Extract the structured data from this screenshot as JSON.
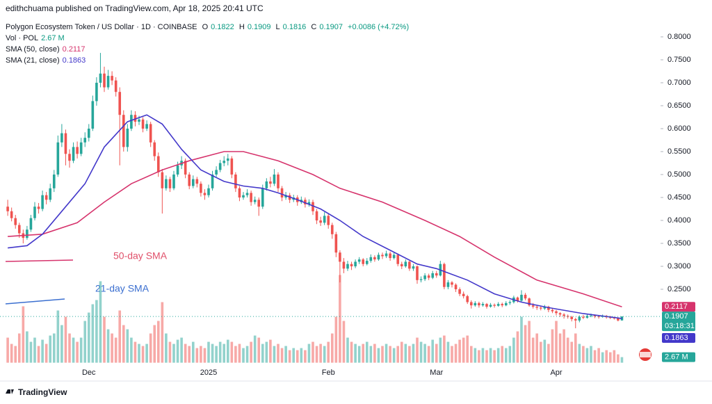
{
  "header": {
    "publisher": "edithchuama published on TradingView.com, Apr 18, 2025 20:41 UTC"
  },
  "footer": {
    "brand": "TradingView"
  },
  "chart_data": {
    "type": "candlestick",
    "title": "Polygon Ecosystem Token / US Dollar · 1D · COINBASE",
    "ohlc_letters": [
      "O",
      "H",
      "L",
      "C"
    ],
    "last_ohlc": [
      0.1822,
      0.1909,
      0.1816,
      0.1907
    ],
    "change": "+0.0086 (+4.72%)",
    "volume_name": "Vol · POL",
    "volume_label": "2.67 M",
    "countdown": "03:18:31",
    "up_color": "#26a69a",
    "down_color": "#ef5350",
    "grid": false,
    "xlim": [
      -2,
      169
    ],
    "ylim": [
      0.09,
      0.85
    ],
    "volume_ylim": [
      0,
      160
    ],
    "yticks": [
      {
        "value": 0.8,
        "label": "0.8000"
      },
      {
        "value": 0.75,
        "label": "0.7500"
      },
      {
        "value": 0.7,
        "label": "0.7000"
      },
      {
        "value": 0.65,
        "label": "0.6500"
      },
      {
        "value": 0.6,
        "label": "0.6000"
      },
      {
        "value": 0.55,
        "label": "0.5500"
      },
      {
        "value": 0.5,
        "label": "0.5000"
      },
      {
        "value": 0.45,
        "label": "0.4500"
      },
      {
        "value": 0.4,
        "label": "0.4000"
      },
      {
        "value": 0.35,
        "label": "0.3500"
      },
      {
        "value": 0.3,
        "label": "0.3000"
      },
      {
        "value": 0.25,
        "label": "0.2500"
      }
    ],
    "xticks": [
      {
        "value": 21,
        "label": "Dec"
      },
      {
        "value": 52,
        "label": "2025"
      },
      {
        "value": 83,
        "label": "Feb"
      },
      {
        "value": 111,
        "label": "Mar"
      },
      {
        "value": 142,
        "label": "Apr"
      }
    ],
    "ohlc": [
      [
        0.43,
        0.445,
        0.41,
        0.42
      ],
      [
        0.42,
        0.428,
        0.398,
        0.405
      ],
      [
        0.405,
        0.412,
        0.382,
        0.39
      ],
      [
        0.39,
        0.395,
        0.362,
        0.372
      ],
      [
        0.372,
        0.38,
        0.35,
        0.362
      ],
      [
        0.362,
        0.388,
        0.358,
        0.38
      ],
      [
        0.38,
        0.412,
        0.375,
        0.405
      ],
      [
        0.405,
        0.44,
        0.4,
        0.43
      ],
      [
        0.43,
        0.438,
        0.415,
        0.425
      ],
      [
        0.425,
        0.465,
        0.42,
        0.455
      ],
      [
        0.455,
        0.462,
        0.435,
        0.445
      ],
      [
        0.445,
        0.48,
        0.44,
        0.47
      ],
      [
        0.47,
        0.51,
        0.462,
        0.5
      ],
      [
        0.5,
        0.585,
        0.495,
        0.57
      ],
      [
        0.57,
        0.61,
        0.56,
        0.59
      ],
      [
        0.59,
        0.598,
        0.52,
        0.545
      ],
      [
        0.545,
        0.555,
        0.515,
        0.53
      ],
      [
        0.53,
        0.57,
        0.525,
        0.56
      ],
      [
        0.56,
        0.572,
        0.535,
        0.545
      ],
      [
        0.545,
        0.58,
        0.54,
        0.57
      ],
      [
        0.57,
        0.592,
        0.56,
        0.58
      ],
      [
        0.58,
        0.61,
        0.572,
        0.6
      ],
      [
        0.6,
        0.672,
        0.595,
        0.66
      ],
      [
        0.66,
        0.712,
        0.65,
        0.7
      ],
      [
        0.7,
        0.765,
        0.69,
        0.72
      ],
      [
        0.72,
        0.735,
        0.68,
        0.69
      ],
      [
        0.69,
        0.728,
        0.685,
        0.715
      ],
      [
        0.715,
        0.725,
        0.695,
        0.705
      ],
      [
        0.705,
        0.712,
        0.67,
        0.68
      ],
      [
        0.68,
        0.69,
        0.52,
        0.63
      ],
      [
        0.63,
        0.64,
        0.55,
        0.56
      ],
      [
        0.56,
        0.61,
        0.55,
        0.6
      ],
      [
        0.6,
        0.64,
        0.595,
        0.63
      ],
      [
        0.63,
        0.638,
        0.605,
        0.615
      ],
      [
        0.615,
        0.628,
        0.608,
        0.62
      ],
      [
        0.62,
        0.625,
        0.592,
        0.6
      ],
      [
        0.6,
        0.618,
        0.595,
        0.61
      ],
      [
        0.61,
        0.615,
        0.56,
        0.57
      ],
      [
        0.57,
        0.575,
        0.53,
        0.54
      ],
      [
        0.54,
        0.548,
        0.495,
        0.505
      ],
      [
        0.505,
        0.512,
        0.415,
        0.47
      ],
      [
        0.47,
        0.498,
        0.465,
        0.49
      ],
      [
        0.49,
        0.495,
        0.462,
        0.47
      ],
      [
        0.47,
        0.508,
        0.466,
        0.5
      ],
      [
        0.5,
        0.528,
        0.495,
        0.52
      ],
      [
        0.52,
        0.54,
        0.512,
        0.53
      ],
      [
        0.53,
        0.535,
        0.492,
        0.5
      ],
      [
        0.5,
        0.505,
        0.468,
        0.475
      ],
      [
        0.475,
        0.498,
        0.47,
        0.49
      ],
      [
        0.49,
        0.495,
        0.472,
        0.48
      ],
      [
        0.48,
        0.485,
        0.452,
        0.46
      ],
      [
        0.46,
        0.468,
        0.445,
        0.455
      ],
      [
        0.455,
        0.478,
        0.45,
        0.47
      ],
      [
        0.47,
        0.508,
        0.465,
        0.5
      ],
      [
        0.5,
        0.518,
        0.495,
        0.51
      ],
      [
        0.51,
        0.532,
        0.505,
        0.525
      ],
      [
        0.525,
        0.54,
        0.518,
        0.53
      ],
      [
        0.53,
        0.545,
        0.52,
        0.535
      ],
      [
        0.535,
        0.54,
        0.492,
        0.5
      ],
      [
        0.5,
        0.505,
        0.462,
        0.47
      ],
      [
        0.47,
        0.475,
        0.442,
        0.45
      ],
      [
        0.45,
        0.462,
        0.445,
        0.455
      ],
      [
        0.455,
        0.468,
        0.45,
        0.46
      ],
      [
        0.46,
        0.465,
        0.432,
        0.44
      ],
      [
        0.44,
        0.452,
        0.435,
        0.445
      ],
      [
        0.445,
        0.45,
        0.41,
        0.43
      ],
      [
        0.43,
        0.478,
        0.425,
        0.47
      ],
      [
        0.47,
        0.492,
        0.465,
        0.485
      ],
      [
        0.485,
        0.495,
        0.472,
        0.48
      ],
      [
        0.48,
        0.512,
        0.475,
        0.5
      ],
      [
        0.5,
        0.505,
        0.462,
        0.47
      ],
      [
        0.47,
        0.475,
        0.442,
        0.45
      ],
      [
        0.45,
        0.462,
        0.445,
        0.455
      ],
      [
        0.455,
        0.46,
        0.438,
        0.445
      ],
      [
        0.445,
        0.456,
        0.44,
        0.45
      ],
      [
        0.45,
        0.455,
        0.432,
        0.44
      ],
      [
        0.44,
        0.452,
        0.436,
        0.445
      ],
      [
        0.445,
        0.45,
        0.428,
        0.435
      ],
      [
        0.435,
        0.446,
        0.43,
        0.44
      ],
      [
        0.44,
        0.445,
        0.412,
        0.42
      ],
      [
        0.42,
        0.425,
        0.392,
        0.4
      ],
      [
        0.4,
        0.408,
        0.388,
        0.395
      ],
      [
        0.395,
        0.418,
        0.39,
        0.41
      ],
      [
        0.41,
        0.415,
        0.382,
        0.39
      ],
      [
        0.39,
        0.395,
        0.36,
        0.37
      ],
      [
        0.37,
        0.375,
        0.32,
        0.33
      ],
      [
        0.33,
        0.335,
        0.265,
        0.31
      ],
      [
        0.31,
        0.318,
        0.285,
        0.295
      ],
      [
        0.295,
        0.312,
        0.29,
        0.305
      ],
      [
        0.305,
        0.31,
        0.292,
        0.3
      ],
      [
        0.3,
        0.315,
        0.296,
        0.31
      ],
      [
        0.31,
        0.32,
        0.305,
        0.315
      ],
      [
        0.315,
        0.318,
        0.3,
        0.305
      ],
      [
        0.305,
        0.318,
        0.302,
        0.312
      ],
      [
        0.312,
        0.326,
        0.308,
        0.32
      ],
      [
        0.32,
        0.324,
        0.31,
        0.315
      ],
      [
        0.315,
        0.33,
        0.312,
        0.325
      ],
      [
        0.325,
        0.33,
        0.316,
        0.322
      ],
      [
        0.322,
        0.334,
        0.318,
        0.328
      ],
      [
        0.328,
        0.332,
        0.312,
        0.318
      ],
      [
        0.318,
        0.33,
        0.315,
        0.325
      ],
      [
        0.325,
        0.328,
        0.3,
        0.305
      ],
      [
        0.305,
        0.31,
        0.294,
        0.3
      ],
      [
        0.3,
        0.315,
        0.297,
        0.31
      ],
      [
        0.31,
        0.312,
        0.29,
        0.295
      ],
      [
        0.295,
        0.305,
        0.29,
        0.3
      ],
      [
        0.3,
        0.302,
        0.262,
        0.27
      ],
      [
        0.27,
        0.278,
        0.265,
        0.272
      ],
      [
        0.272,
        0.285,
        0.268,
        0.28
      ],
      [
        0.28,
        0.284,
        0.27,
        0.275
      ],
      [
        0.275,
        0.29,
        0.272,
        0.285
      ],
      [
        0.285,
        0.29,
        0.275,
        0.28
      ],
      [
        0.28,
        0.312,
        0.278,
        0.305
      ],
      [
        0.305,
        0.308,
        0.25,
        0.255
      ],
      [
        0.255,
        0.27,
        0.25,
        0.265
      ],
      [
        0.265,
        0.268,
        0.254,
        0.26
      ],
      [
        0.26,
        0.263,
        0.244,
        0.25
      ],
      [
        0.25,
        0.254,
        0.235,
        0.24
      ],
      [
        0.24,
        0.245,
        0.23,
        0.235
      ],
      [
        0.235,
        0.238,
        0.218,
        0.222
      ],
      [
        0.222,
        0.226,
        0.208,
        0.215
      ],
      [
        0.215,
        0.224,
        0.212,
        0.22
      ],
      [
        0.22,
        0.223,
        0.21,
        0.215
      ],
      [
        0.215,
        0.222,
        0.212,
        0.218
      ],
      [
        0.218,
        0.22,
        0.208,
        0.212
      ],
      [
        0.212,
        0.22,
        0.21,
        0.216
      ],
      [
        0.216,
        0.219,
        0.21,
        0.214
      ],
      [
        0.214,
        0.222,
        0.212,
        0.218
      ],
      [
        0.218,
        0.221,
        0.211,
        0.215
      ],
      [
        0.215,
        0.224,
        0.213,
        0.22
      ],
      [
        0.22,
        0.226,
        0.216,
        0.222
      ],
      [
        0.222,
        0.236,
        0.219,
        0.232
      ],
      [
        0.232,
        0.234,
        0.221,
        0.225
      ],
      [
        0.225,
        0.248,
        0.222,
        0.238
      ],
      [
        0.238,
        0.242,
        0.226,
        0.23
      ],
      [
        0.23,
        0.232,
        0.212,
        0.215
      ],
      [
        0.215,
        0.22,
        0.208,
        0.212
      ],
      [
        0.212,
        0.215,
        0.205,
        0.21
      ],
      [
        0.21,
        0.214,
        0.204,
        0.208
      ],
      [
        0.208,
        0.216,
        0.205,
        0.212
      ],
      [
        0.212,
        0.214,
        0.2,
        0.205
      ],
      [
        0.205,
        0.208,
        0.198,
        0.202
      ],
      [
        0.202,
        0.205,
        0.193,
        0.198
      ],
      [
        0.198,
        0.2,
        0.19,
        0.195
      ],
      [
        0.195,
        0.198,
        0.186,
        0.192
      ],
      [
        0.192,
        0.195,
        0.186,
        0.19
      ],
      [
        0.19,
        0.192,
        0.18,
        0.185
      ],
      [
        0.185,
        0.188,
        0.165,
        0.182
      ],
      [
        0.182,
        0.193,
        0.178,
        0.19
      ],
      [
        0.19,
        0.194,
        0.185,
        0.188
      ],
      [
        0.188,
        0.196,
        0.186,
        0.192
      ],
      [
        0.192,
        0.197,
        0.189,
        0.193
      ],
      [
        0.193,
        0.195,
        0.187,
        0.191
      ],
      [
        0.191,
        0.194,
        0.186,
        0.19
      ],
      [
        0.19,
        0.195,
        0.188,
        0.192
      ],
      [
        0.192,
        0.194,
        0.186,
        0.189
      ],
      [
        0.189,
        0.192,
        0.185,
        0.188
      ],
      [
        0.188,
        0.19,
        0.184,
        0.187
      ],
      [
        0.187,
        0.189,
        0.18,
        0.182
      ],
      [
        0.1822,
        0.1909,
        0.1816,
        0.1907
      ]
    ],
    "volume": [
      12,
      9,
      8,
      14,
      27,
      15,
      10,
      12,
      8,
      11,
      9,
      13,
      14,
      25,
      18,
      22,
      14,
      12,
      10,
      12,
      20,
      24,
      28,
      30,
      39,
      22,
      16,
      14,
      12,
      25,
      18,
      16,
      12,
      10,
      9,
      8,
      9,
      14,
      18,
      20,
      29,
      14,
      10,
      9,
      11,
      12,
      9,
      8,
      10,
      7,
      8,
      7,
      10,
      9,
      8,
      10,
      9,
      11,
      10,
      8,
      9,
      7,
      8,
      10,
      13,
      12,
      9,
      10,
      11,
      8,
      9,
      7,
      8,
      6,
      7,
      6,
      7,
      6,
      9,
      10,
      8,
      9,
      8,
      10,
      14,
      22,
      42,
      20,
      12,
      10,
      9,
      8,
      9,
      10,
      8,
      9,
      7,
      8,
      9,
      8,
      7,
      8,
      10,
      9,
      8,
      9,
      12,
      10,
      9,
      8,
      11,
      9,
      12,
      13,
      10,
      8,
      9,
      11,
      12,
      13,
      8,
      7,
      6,
      7,
      6,
      7,
      6,
      7,
      8,
      7,
      8,
      12,
      15,
      22,
      18,
      20,
      12,
      14,
      10,
      11,
      9,
      16,
      20,
      14,
      16,
      12,
      10,
      14,
      9,
      8,
      7,
      8,
      6,
      7,
      5,
      6,
      5,
      6,
      4,
      2.67
    ],
    "series": [
      {
        "name": "SMA (50, close)",
        "color": "#d6336c",
        "annotation": "50-day SMA",
        "x": [
          0,
          9,
          18,
          25,
          32,
          40,
          47,
          56,
          61,
          70,
          79,
          86,
          97,
          108,
          117,
          126,
          137,
          149,
          159
        ],
        "values": [
          0.365,
          0.37,
          0.395,
          0.44,
          0.48,
          0.51,
          0.53,
          0.55,
          0.55,
          0.53,
          0.5,
          0.47,
          0.44,
          0.4,
          0.365,
          0.32,
          0.27,
          0.24,
          0.2117
        ]
      },
      {
        "name": "SMA (21, close)",
        "color": "#4338ca",
        "annotation": "21-day SMA",
        "x": [
          0,
          5,
          9,
          14,
          20,
          25,
          31,
          36,
          40,
          45,
          50,
          56,
          61,
          66,
          70,
          75,
          81,
          86,
          92,
          99,
          106,
          111,
          119,
          126,
          133,
          140,
          149,
          159
        ],
        "values": [
          0.34,
          0.345,
          0.37,
          0.42,
          0.48,
          0.56,
          0.615,
          0.63,
          0.61,
          0.555,
          0.51,
          0.485,
          0.475,
          0.47,
          0.46,
          0.445,
          0.425,
          0.4,
          0.365,
          0.335,
          0.305,
          0.295,
          0.27,
          0.24,
          0.222,
          0.21,
          0.197,
          0.1863
        ]
      }
    ]
  }
}
